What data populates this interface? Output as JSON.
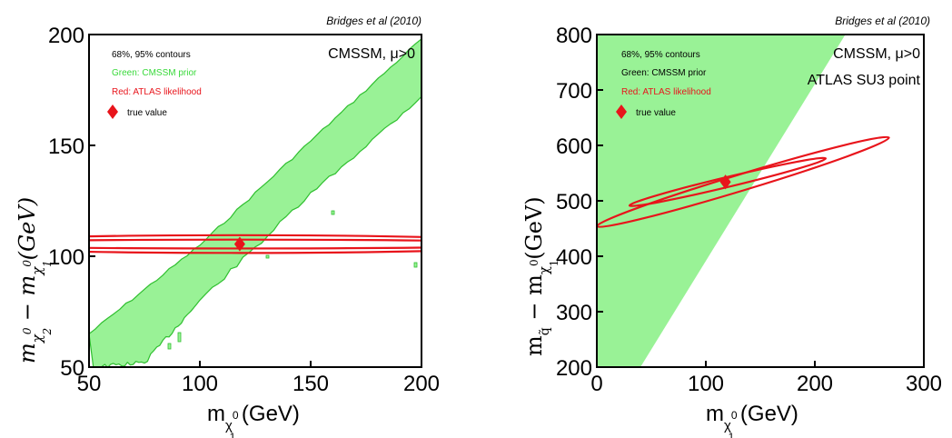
{
  "colors": {
    "prior_fill": "#99f296",
    "prior_edge": "#2fbf2f",
    "likelihood": "#e8141b",
    "marker": "#e8141b",
    "green_text": "#38d93a",
    "red_text": "#e8141b"
  },
  "chart_data": [
    {
      "type": "contour",
      "citation": "Bridges et al (2010)",
      "xlabel": "m_χ1^0 (GeV)",
      "ylabel": "m_χ2^0 − m_χ1^0 (GeV)",
      "xlim": [
        50,
        200
      ],
      "ylim": [
        50,
        200
      ],
      "xticks": [
        50,
        100,
        150,
        200
      ],
      "yticks": [
        50,
        100,
        150,
        200
      ],
      "annotations": {
        "model": "CMSSM, μ>0",
        "contours": "68%, 95% contours",
        "green": "Green: CMSSM prior",
        "red": "Red: ATLAS likelihood",
        "true_value": "true value"
      },
      "prior_band": {
        "lower_edge": [
          [
            52,
            50
          ],
          [
            75,
            52
          ],
          [
            100,
            80
          ],
          [
            150,
            128
          ],
          [
            200,
            172
          ]
        ],
        "upper_edge": [
          [
            50,
            65
          ],
          [
            100,
            105
          ],
          [
            150,
            152
          ],
          [
            200,
            198
          ]
        ]
      },
      "likelihood_contours": [
        {
          "level": "68%",
          "center": [
            118,
            105.5
          ],
          "x_range": [
            50,
            200
          ],
          "y_range": [
            103.5,
            107.5
          ]
        },
        {
          "level": "95%",
          "center": [
            118,
            105.5
          ],
          "x_range": [
            50,
            200
          ],
          "y_range": [
            101.5,
            109.5
          ]
        }
      ],
      "true_value": [
        118,
        105.5
      ]
    },
    {
      "type": "contour",
      "citation": "Bridges et al (2010)",
      "xlabel": "m_χ1^0 (GeV)",
      "ylabel": "m_q̃ − m_χ1^0 (GeV)",
      "xlim": [
        0,
        300
      ],
      "ylim": [
        200,
        800
      ],
      "xticks": [
        0,
        100,
        200,
        300
      ],
      "yticks": [
        200,
        300,
        400,
        500,
        600,
        700,
        800
      ],
      "annotations": {
        "model": "CMSSM, μ>0",
        "point": "ATLAS SU3 point",
        "contours": "68%, 95% contours",
        "green": "Green: CMSSM prior",
        "red": "Red: ATLAS likelihood",
        "true_value": "true value"
      },
      "prior_region": [
        [
          0,
          200
        ],
        [
          0,
          800
        ],
        [
          228,
          800
        ],
        [
          40,
          200
        ]
      ],
      "likelihood_contours": [
        {
          "level": "68%",
          "center": [
            118,
            534
          ],
          "x_range": [
            30,
            210
          ],
          "y_range": [
            495,
            580
          ]
        },
        {
          "level": "95%",
          "center": [
            118,
            534
          ],
          "x_range": [
            0,
            268
          ],
          "y_range": [
            455,
            615
          ]
        }
      ],
      "true_value": [
        118,
        534
      ]
    }
  ]
}
